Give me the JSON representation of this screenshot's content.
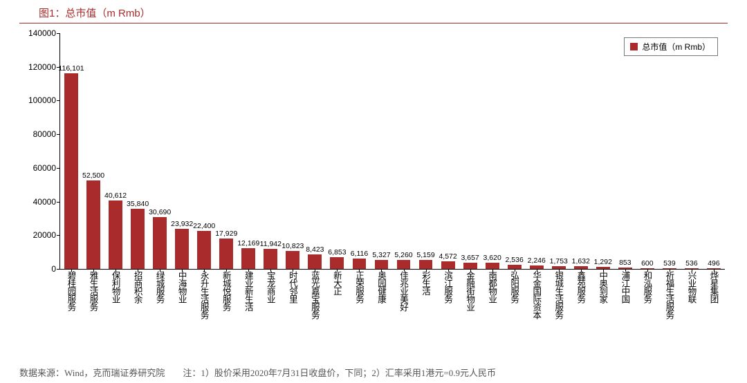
{
  "title": "图1：总市值（m Rmb）",
  "legend_label": "总市值（m Rmb）",
  "footer_text": "数据来源：Wind，克而瑞证券研究院　　注：1）股价采用2020年7月31日收盘价，下同；2）汇率采用1港元=0.9元人民币",
  "chart": {
    "type": "bar",
    "ymax": 140000,
    "ytick_step": 20000,
    "bar_color": "#a92b2b",
    "title_color": "#a92b2b",
    "axis_color": "#000000",
    "background_color": "#ffffff",
    "bar_width_ratio": 0.62,
    "label_fontsize": 10.5,
    "tick_fontsize": 12,
    "categories": [
      "碧桂园服务",
      "雅生活服务",
      "保利物业",
      "招商积余",
      "绿城服务",
      "中海物业",
      "永升生活服务",
      "新城悦服务",
      "建业新生活",
      "宝龙商业",
      "时代邻里",
      "蓝光嘉宝服务",
      "新大正",
      "正荣服务",
      "奥园健康",
      "佳兆业美好",
      "彩生活",
      "滨江服务",
      "金融街物业",
      "南都物业",
      "弘阳服务",
      "华金国际资本",
      "银城生活服务",
      "鑫苑服务",
      "中奥到家",
      "浦江中国",
      "和泓服务",
      "祈福生活服务",
      "兴业物联",
      "烨星集团"
    ],
    "values": [
      116101,
      52500,
      40612,
      35840,
      30690,
      23932,
      22400,
      17929,
      12169,
      11942,
      10823,
      8423,
      6853,
      6116,
      5327,
      5260,
      5159,
      4572,
      3657,
      3620,
      2536,
      2246,
      1753,
      1632,
      1292,
      853,
      600,
      539,
      536,
      496
    ],
    "value_labels": [
      "116,101",
      "52,500",
      "40,612",
      "35,840",
      "30,690",
      "23,932",
      "22,400",
      "17,929",
      "12,169",
      "11,942",
      "10,823",
      "8,423",
      "6,853",
      "6,116",
      "5,327",
      "5,260",
      "5,159",
      "4,572",
      "3,657",
      "3,620",
      "2,536",
      "2,246",
      "1,753",
      "1,632",
      "1,292",
      "853",
      "600",
      "539",
      "536",
      "496"
    ]
  }
}
